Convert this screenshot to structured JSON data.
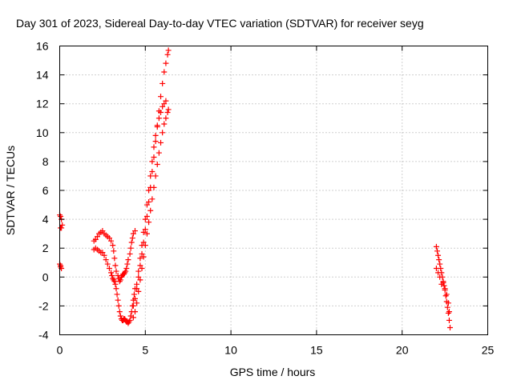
{
  "chart_data": {
    "type": "scatter",
    "title": "Day 301 of 2023, Sidereal Day-to-day VTEC variation (SDTVAR) for receiver seyg",
    "xlabel": "GPS time / hours",
    "ylabel": "SDTVAR / TECUs",
    "xlim": [
      0,
      25
    ],
    "ylim": [
      -4,
      16
    ],
    "xticks": [
      0,
      5,
      10,
      15,
      20,
      25
    ],
    "yticks": [
      -4,
      -2,
      0,
      2,
      4,
      6,
      8,
      10,
      12,
      14,
      16
    ],
    "xtick_labels": [
      "0",
      "5",
      "10",
      "15",
      "20",
      "25"
    ],
    "ytick_labels": [
      "-4",
      "-2",
      "0",
      "2",
      "4",
      "6",
      "8",
      "10",
      "12",
      "14",
      "16"
    ],
    "grid": true,
    "marker": "+",
    "color": "#ff0000",
    "series": [
      {
        "name": "start-cluster-upper",
        "x": [
          0.0,
          0.05,
          0.1,
          0.15,
          0.05,
          0.1
        ],
        "y": [
          4.3,
          4.2,
          4.0,
          3.6,
          3.4,
          3.4
        ]
      },
      {
        "name": "start-cluster-lower",
        "x": [
          0.0,
          0.05,
          0.1,
          0.05
        ],
        "y": [
          0.9,
          0.7,
          0.6,
          0.8
        ]
      },
      {
        "name": "track-upper",
        "x": [
          2.0,
          2.1,
          2.2,
          2.3,
          2.4,
          2.5,
          2.6,
          2.7,
          2.8,
          2.9,
          3.0,
          3.1,
          3.15,
          3.2,
          3.25,
          3.3,
          3.4,
          3.45,
          3.5,
          3.55,
          3.6,
          3.65,
          3.7,
          3.75,
          3.8,
          3.85,
          3.9,
          3.95,
          4.0,
          4.1,
          4.15,
          4.2,
          4.25,
          4.3,
          4.4
        ],
        "y": [
          2.5,
          2.6,
          2.8,
          3.0,
          3.1,
          3.2,
          3.0,
          2.9,
          2.8,
          2.7,
          2.5,
          2.2,
          1.8,
          1.3,
          0.8,
          0.4,
          0.1,
          -0.1,
          -0.3,
          -0.2,
          0.0,
          0.1,
          0.2,
          0.2,
          0.3,
          0.4,
          0.6,
          0.9,
          1.2,
          1.6,
          2.0,
          2.4,
          2.7,
          3.0,
          3.2
        ]
      },
      {
        "name": "track-lower",
        "x": [
          2.0,
          2.1,
          2.2,
          2.3,
          2.4,
          2.5,
          2.6,
          2.7,
          2.8,
          2.9,
          3.0,
          3.05,
          3.1,
          3.15,
          3.2,
          3.25,
          3.3,
          3.35,
          3.4,
          3.45,
          3.5,
          3.55,
          3.6,
          3.65,
          3.7,
          3.75,
          3.8,
          3.85,
          3.9,
          3.95,
          4.0,
          4.05,
          4.1,
          4.15,
          4.2,
          4.25,
          4.3,
          4.35,
          4.4
        ],
        "y": [
          1.9,
          2.0,
          1.9,
          1.8,
          1.7,
          1.7,
          1.5,
          1.2,
          0.9,
          0.6,
          0.3,
          0.1,
          -0.1,
          -0.2,
          -0.3,
          -0.5,
          -0.8,
          -1.2,
          -1.6,
          -2.0,
          -2.4,
          -2.7,
          -2.9,
          -3.0,
          -3.0,
          -2.9,
          -2.9,
          -3.0,
          -3.1,
          -3.1,
          -3.2,
          -3.1,
          -3.0,
          -2.7,
          -2.4,
          -2.0,
          -1.6,
          -1.2,
          -0.8
        ]
      },
      {
        "name": "rising-trace-a",
        "x": [
          4.3,
          4.4,
          4.5,
          4.6,
          4.7,
          4.8,
          4.9,
          5.0,
          5.1,
          5.2,
          5.3,
          5.4,
          5.5,
          5.6,
          5.7,
          5.8,
          5.9,
          6.0,
          6.1,
          6.2,
          6.3,
          6.35
        ],
        "y": [
          -2.0,
          -1.5,
          -0.8,
          0.0,
          0.8,
          1.6,
          2.4,
          3.3,
          4.2,
          5.2,
          6.2,
          7.3,
          8.3,
          9.4,
          10.5,
          11.5,
          12.5,
          13.4,
          14.2,
          14.8,
          15.4,
          15.7
        ]
      },
      {
        "name": "rising-trace-b",
        "x": [
          4.3,
          4.4,
          4.5,
          4.6,
          4.7,
          4.8,
          4.9,
          5.0,
          5.1,
          5.2,
          5.3,
          5.4,
          5.5,
          5.6,
          5.7,
          5.8,
          5.9,
          6.0,
          6.1,
          6.2,
          6.3,
          6.35
        ],
        "y": [
          -2.8,
          -2.4,
          -1.8,
          -1.0,
          -0.2,
          0.6,
          1.4,
          2.2,
          3.0,
          3.8,
          4.6,
          5.4,
          6.2,
          7.0,
          7.8,
          8.6,
          9.3,
          10.0,
          10.6,
          11.0,
          11.4,
          11.6
        ]
      },
      {
        "name": "rising-trace-c",
        "x": [
          4.5,
          4.6,
          4.7,
          4.8,
          4.9,
          5.0,
          5.1,
          5.2,
          5.3,
          5.4,
          5.5,
          5.6,
          5.7,
          5.8,
          5.9,
          6.0,
          6.1,
          6.2
        ],
        "y": [
          -0.5,
          0.4,
          1.3,
          2.2,
          3.1,
          4.0,
          5.0,
          6.0,
          7.0,
          8.0,
          9.0,
          9.8,
          10.4,
          11.0,
          11.4,
          11.8,
          12.0,
          12.2
        ]
      },
      {
        "name": "evening-cluster",
        "x": [
          22.0,
          22.05,
          22.1,
          22.15,
          22.2,
          22.25,
          22.3,
          22.35,
          22.4,
          22.45,
          22.5,
          22.55,
          22.6,
          22.65,
          22.7,
          22.75,
          22.8,
          22.0,
          22.1,
          22.2,
          22.3,
          22.4,
          22.5,
          22.6,
          22.7,
          22.75
        ],
        "y": [
          2.1,
          1.8,
          1.5,
          1.2,
          0.9,
          0.6,
          0.3,
          0.0,
          -0.3,
          -0.6,
          -0.9,
          -1.3,
          -1.7,
          -2.1,
          -2.5,
          -3.0,
          -3.5,
          0.6,
          0.3,
          0.0,
          -0.5,
          -0.4,
          -0.8,
          -1.2,
          -1.8,
          -2.4
        ]
      }
    ]
  }
}
